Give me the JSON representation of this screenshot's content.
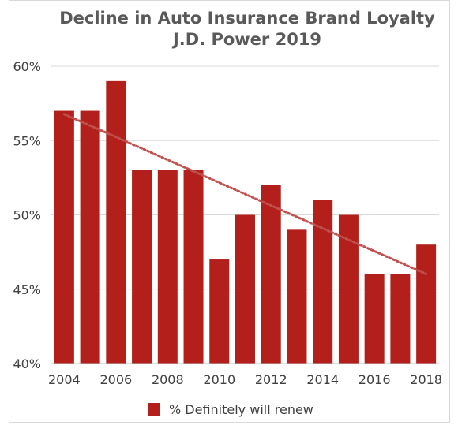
{
  "chart_data": {
    "type": "bar",
    "title": [
      "Decline in Auto Insurance Brand Loyalty",
      "J.D. Power 2019"
    ],
    "categories": [
      2004,
      2005,
      2006,
      2007,
      2008,
      2009,
      2010,
      2011,
      2012,
      2013,
      2014,
      2015,
      2016,
      2017,
      2018
    ],
    "x_tick_labels": [
      "2004",
      "2006",
      "2008",
      "2010",
      "2012",
      "2014",
      "2016",
      "2018"
    ],
    "series": [
      {
        "name": "% Definitely will renew",
        "values": [
          57,
          57,
          59,
          53,
          53,
          53,
          47,
          50,
          52,
          49,
          51,
          50,
          46,
          46,
          48
        ]
      }
    ],
    "trendline": {
      "type": "linear",
      "style": "dotted"
    },
    "ylim": [
      40,
      60
    ],
    "y_ticks": [
      40,
      45,
      50,
      55,
      60
    ],
    "y_tick_labels": [
      "40%",
      "45%",
      "50%",
      "55%",
      "60%"
    ],
    "xlabel": "",
    "ylabel": "",
    "grid": true,
    "legend_position": "bottom",
    "colors": {
      "bar": "#b31f1b",
      "trend": "#c0504d",
      "grid": "#d9d9d9",
      "axis": "#bfbfbf"
    }
  }
}
